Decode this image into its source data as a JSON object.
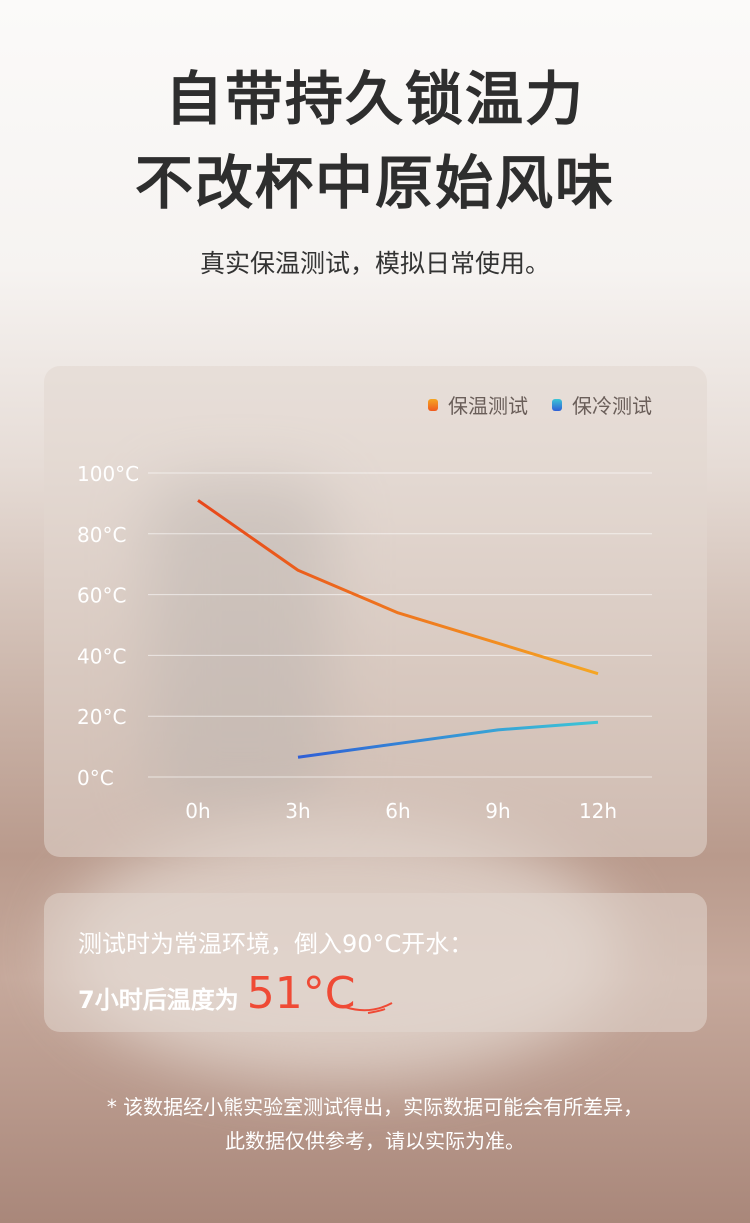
{
  "header": {
    "title_line1": "自带持久锁温力",
    "title_line2": "不改杯中原始风味",
    "subtitle": "真实保温测试，模拟日常使用。"
  },
  "chart_data": {
    "type": "line",
    "x": [
      "0h",
      "3h",
      "6h",
      "9h",
      "12h"
    ],
    "y_ticks": [
      "0°C",
      "20°C",
      "40°C",
      "60°C",
      "80°C",
      "100°C"
    ],
    "ylim": [
      0,
      100
    ],
    "grid": true,
    "legend_placement": "top-right",
    "series": [
      {
        "name": "保温测试",
        "color": "#f05a1e",
        "color_end": "#f5a623",
        "values": [
          91,
          68,
          54,
          44,
          34
        ]
      },
      {
        "name": "保冷测试",
        "color": "#2f5fd6",
        "color_end": "#3cc6d6",
        "values": [
          null,
          6.5,
          11,
          15.5,
          18
        ]
      }
    ]
  },
  "note": {
    "line1": "测试时为常温环境，倒入90°C开水：",
    "line2_prefix": "7小时后温度为",
    "highlight": "51°C",
    "highlight_color": "#ef4a35"
  },
  "disclaimer": {
    "line1": "* 该数据经小熊实验室测试得出，实际数据可能会有所差异，",
    "line2": "此数据仅供参考，请以实际为准。"
  }
}
